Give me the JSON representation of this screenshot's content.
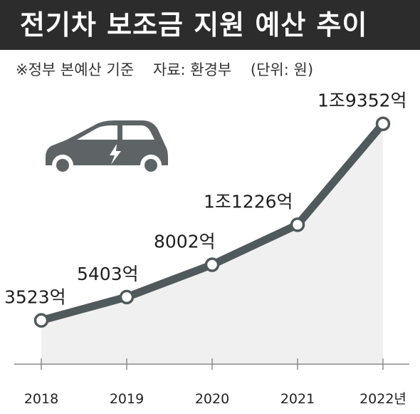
{
  "header": {
    "title": "전기차 보조금 지원 예산 추이",
    "note": "※정부 본예산 기준",
    "source": "자료: 환경부",
    "unit": "(단위: 원)"
  },
  "icon": "electric-car-icon",
  "colors": {
    "title_bg": "#2c2c2c",
    "line": "#505a5c",
    "area": "#f0f0f0",
    "car": "#5e6466",
    "marker_fill": "#ffffff"
  },
  "chart_data": {
    "type": "line",
    "categories": [
      "2018",
      "2019",
      "2020",
      "2021",
      "2022년"
    ],
    "x": [
      2018,
      2019,
      2020,
      2021,
      2022
    ],
    "values": [
      3523,
      5403,
      8002,
      11226,
      19352
    ],
    "unit": "억원",
    "data_labels": [
      "3523억",
      "5403억",
      "8002억",
      "1조1226억",
      "1조9352억"
    ],
    "ylim": [
      0,
      21000
    ],
    "grid": false,
    "legend": "none"
  }
}
